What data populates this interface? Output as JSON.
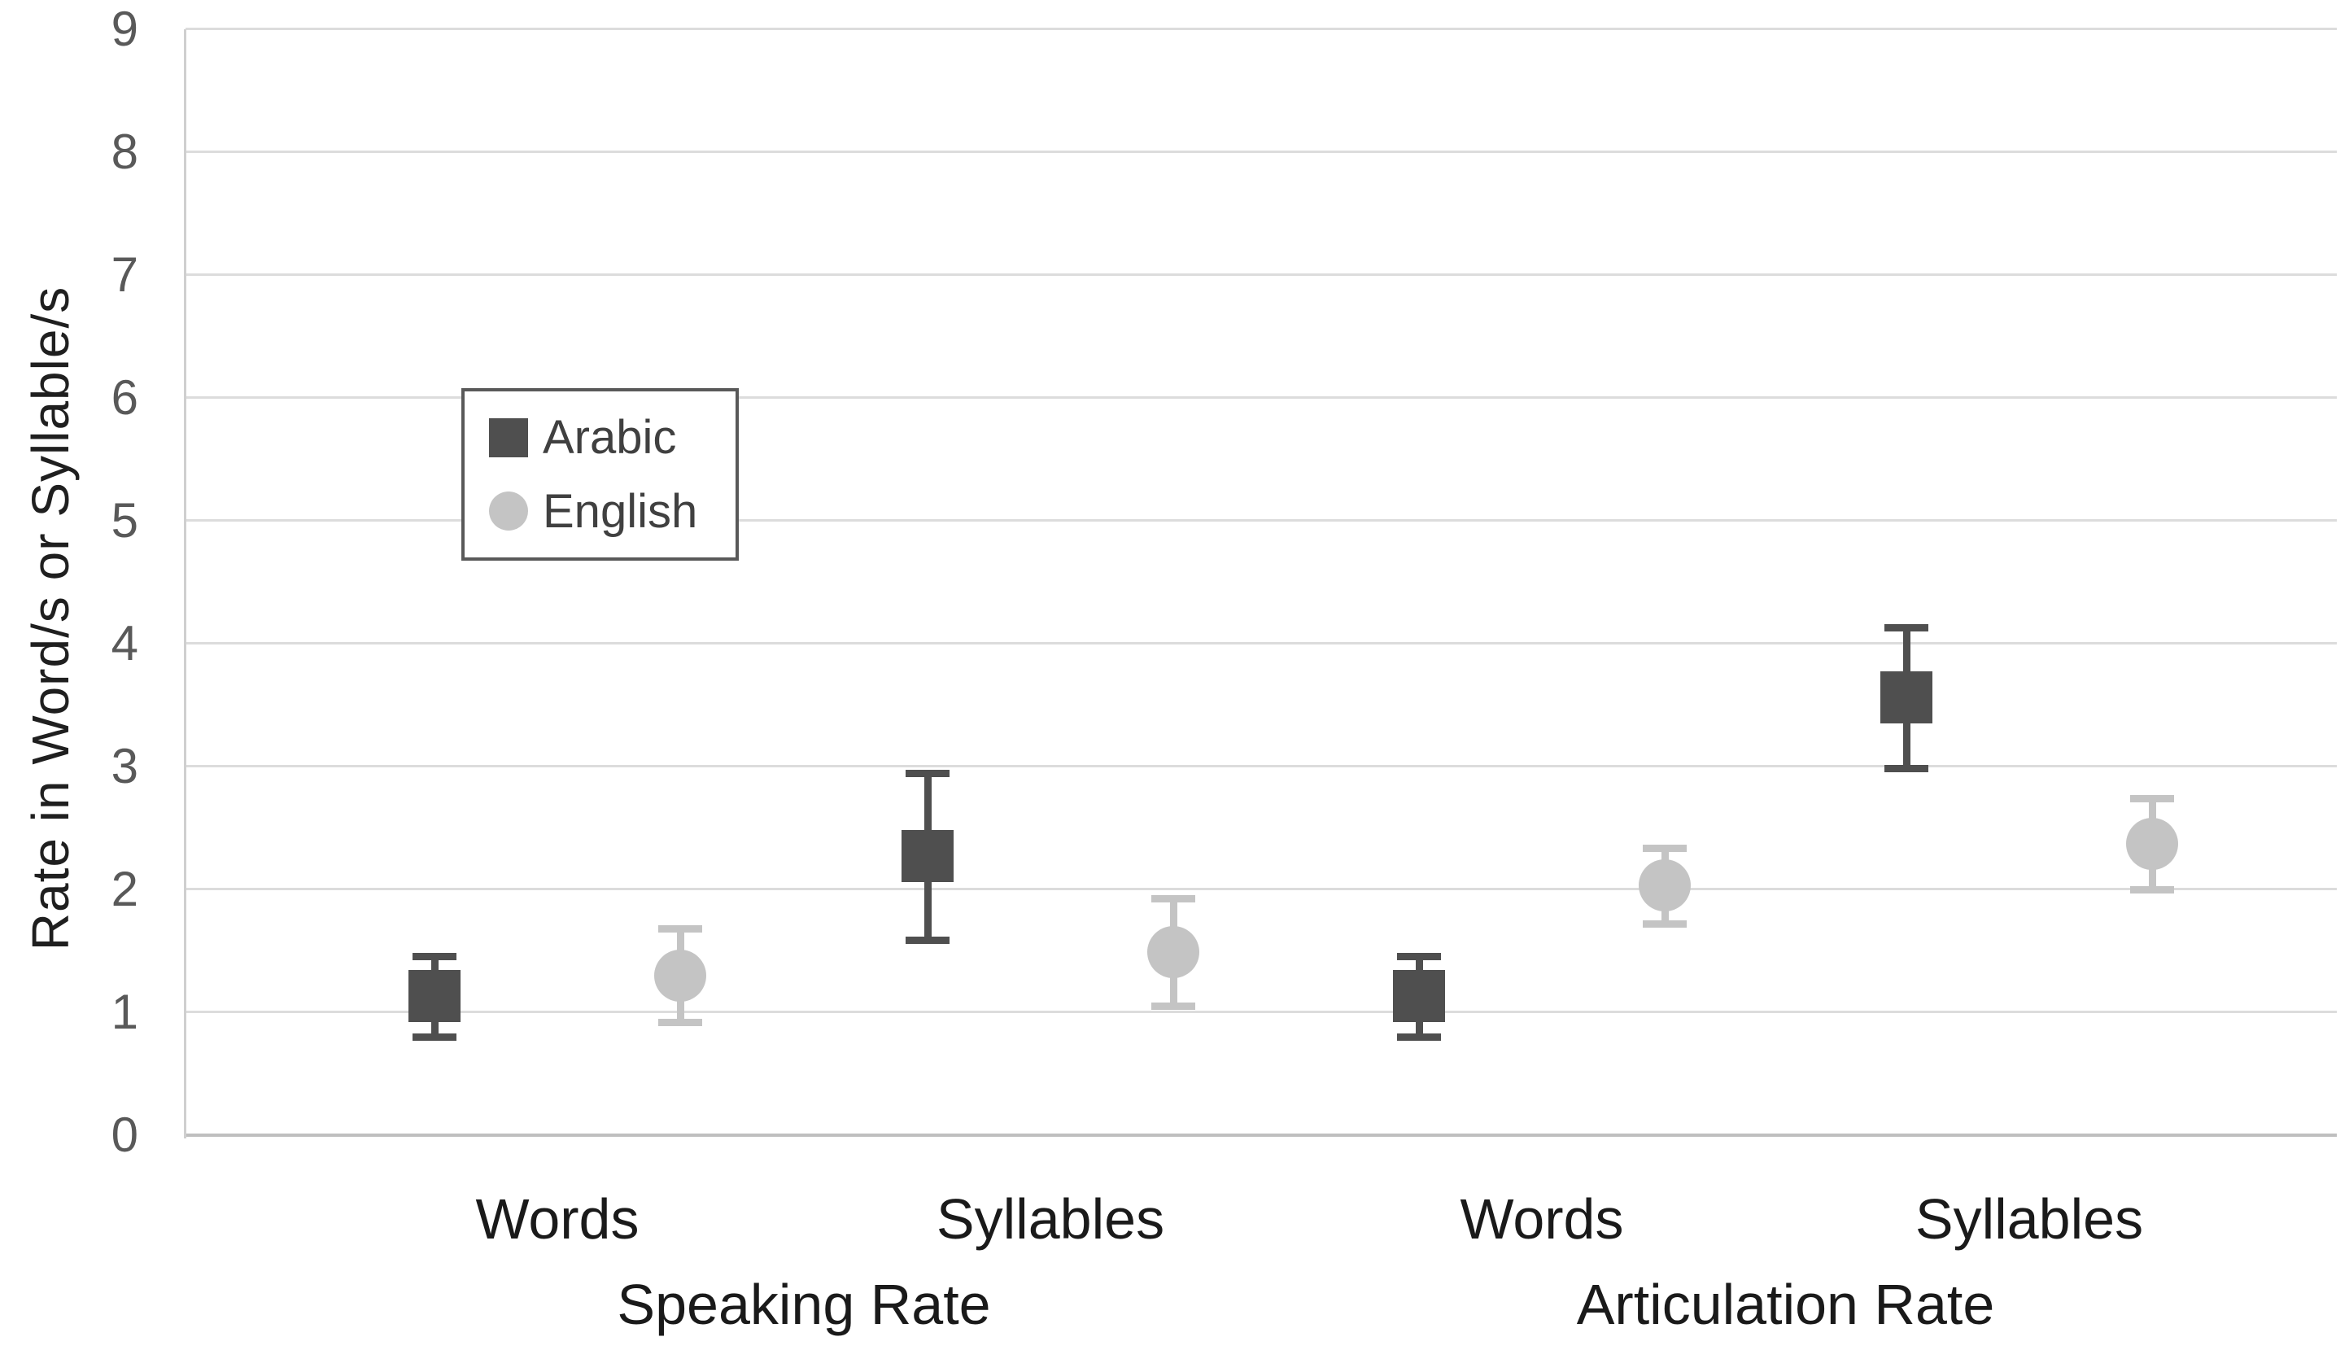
{
  "chart_data": {
    "type": "scatter",
    "title": "",
    "ylabel": "Rate in Word/s or Syllable/s",
    "xlabel": "",
    "ylim": [
      0,
      9
    ],
    "yticks": [
      "0",
      "1",
      "2",
      "3",
      "4",
      "5",
      "6",
      "7",
      "8",
      "9"
    ],
    "grid": true,
    "error_bars": true,
    "legend_position": "inside-upper-left",
    "categories": [
      "Words",
      "Syllables",
      "Words",
      "Syllables"
    ],
    "group_labels": [
      "Speaking Rate",
      "Articulation Rate"
    ],
    "series": [
      {
        "name": "Arabic",
        "marker": "square",
        "color": "#4f4f4f",
        "values": [
          1.13,
          2.27,
          1.13,
          3.56
        ],
        "errors": [
          0.33,
          0.68,
          0.33,
          0.57
        ]
      },
      {
        "name": "English",
        "marker": "circle",
        "color": "#c4c4c4",
        "values": [
          1.3,
          1.49,
          2.03,
          2.37
        ],
        "errors": [
          0.38,
          0.44,
          0.31,
          0.37
        ]
      }
    ]
  },
  "legend": {
    "items": [
      {
        "label": "Arabic",
        "marker": "square",
        "color": "#4f4f4f"
      },
      {
        "label": "English",
        "marker": "circle",
        "color": "#c4c4c4"
      }
    ]
  }
}
